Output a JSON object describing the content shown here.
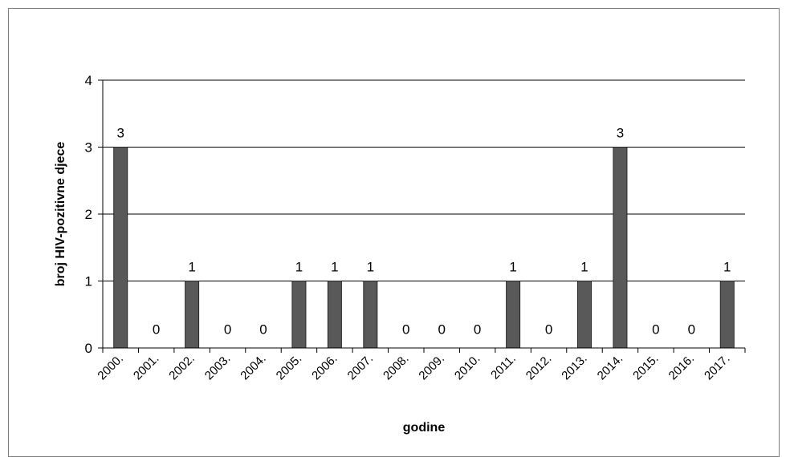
{
  "chart_data": {
    "type": "bar",
    "title": "",
    "xlabel": "godine",
    "ylabel": "broj HIV-pozitivne djece",
    "ylim": [
      0,
      4
    ],
    "yticks": [
      0,
      1,
      2,
      3,
      4
    ],
    "grid": true,
    "legend": "none",
    "bar_color": "#595959",
    "categories": [
      "2000.",
      "2001.",
      "2002.",
      "2003.",
      "2004.",
      "2005.",
      "2006.",
      "2007.",
      "2008.",
      "2009.",
      "2010.",
      "2011.",
      "2012.",
      "2013.",
      "2014.",
      "2015.",
      "2016.",
      "2017."
    ],
    "values": [
      3,
      0,
      1,
      0,
      0,
      1,
      1,
      1,
      0,
      0,
      0,
      1,
      0,
      1,
      3,
      0,
      0,
      1
    ],
    "data_labels": true
  }
}
